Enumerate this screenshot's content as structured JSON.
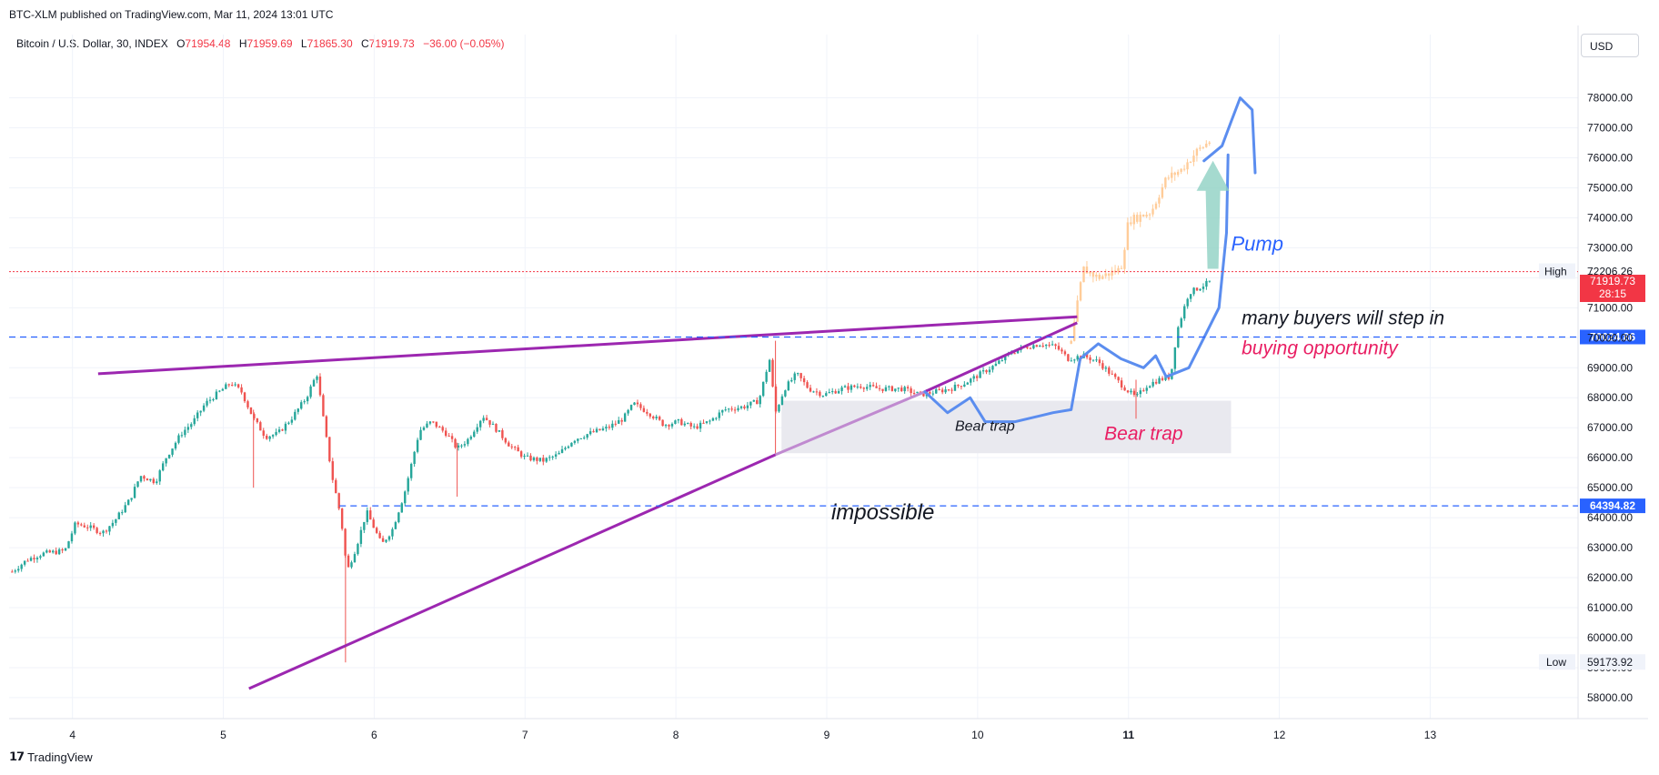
{
  "publish_line": "BTC-XLM published on TradingView.com, Mar 11, 2024 13:01 UTC",
  "legend": {
    "symbol": "Bitcoin / U.S. Dollar, 30, INDEX",
    "o_label": "O",
    "o_value": "71954.48",
    "h_label": "H",
    "h_value": "71959.69",
    "l_label": "L",
    "l_value": "71865.30",
    "c_label": "C",
    "c_value": "71919.73",
    "change": "−36.00 (−0.05%)"
  },
  "currency": "USD",
  "footer_brand": "TradingView",
  "chart_data": {
    "type": "candlestick",
    "title": "Bitcoin / U.S. Dollar, 30, INDEX",
    "x_ticks": [
      "4",
      "5",
      "6",
      "7",
      "8",
      "9",
      "10",
      "11",
      "12",
      "13"
    ],
    "y_ticks": [
      "78000.00",
      "77000.00",
      "76000.00",
      "75000.00",
      "74000.00",
      "73000.00",
      "72000.00",
      "71000.00",
      "70000.00",
      "69000.00",
      "68000.00",
      "67000.00",
      "66000.00",
      "65000.00",
      "64000.00",
      "63000.00",
      "62000.00",
      "61000.00",
      "60000.00",
      "59000.00",
      "58000.00"
    ],
    "ylim": [
      57300,
      79200
    ],
    "xlim": [
      3.58,
      13.98
    ],
    "price_path": [
      [
        3.6,
        62200
      ],
      [
        3.7,
        62600
      ],
      [
        3.8,
        62800
      ],
      [
        3.95,
        62900
      ],
      [
        4.02,
        63800
      ],
      [
        4.1,
        63700
      ],
      [
        4.2,
        63500
      ],
      [
        4.28,
        63900
      ],
      [
        4.38,
        64600
      ],
      [
        4.45,
        65400
      ],
      [
        4.55,
        65200
      ],
      [
        4.62,
        66000
      ],
      [
        4.72,
        66800
      ],
      [
        4.8,
        67200
      ],
      [
        4.88,
        67800
      ],
      [
        4.95,
        68100
      ],
      [
        5.05,
        68500
      ],
      [
        5.12,
        68200
      ],
      [
        5.2,
        67300
      ],
      [
        5.28,
        66700
      ],
      [
        5.36,
        66800
      ],
      [
        5.45,
        67300
      ],
      [
        5.55,
        68000
      ],
      [
        5.62,
        68800
      ],
      [
        5.66,
        67400
      ],
      [
        5.72,
        65400
      ],
      [
        5.78,
        64000
      ],
      [
        5.82,
        62200
      ],
      [
        5.88,
        63000
      ],
      [
        5.95,
        64200
      ],
      [
        6.05,
        63100
      ],
      [
        6.12,
        63600
      ],
      [
        6.2,
        64800
      ],
      [
        6.3,
        66900
      ],
      [
        6.38,
        67200
      ],
      [
        6.48,
        66800
      ],
      [
        6.55,
        66300
      ],
      [
        6.62,
        66600
      ],
      [
        6.72,
        67400
      ],
      [
        6.8,
        67000
      ],
      [
        6.9,
        66400
      ],
      [
        7.0,
        66000
      ],
      [
        7.12,
        65900
      ],
      [
        7.22,
        66100
      ],
      [
        7.32,
        66600
      ],
      [
        7.42,
        66800
      ],
      [
        7.55,
        67000
      ],
      [
        7.65,
        67300
      ],
      [
        7.72,
        67800
      ],
      [
        7.82,
        67500
      ],
      [
        7.92,
        67100
      ],
      [
        8.02,
        67200
      ],
      [
        8.12,
        67000
      ],
      [
        8.22,
        67200
      ],
      [
        8.32,
        67600
      ],
      [
        8.45,
        67700
      ],
      [
        8.55,
        67900
      ],
      [
        8.62,
        69300
      ],
      [
        8.66,
        67500
      ],
      [
        8.72,
        68300
      ],
      [
        8.8,
        68800
      ],
      [
        8.88,
        68300
      ],
      [
        8.98,
        68100
      ],
      [
        9.1,
        68300
      ],
      [
        9.22,
        68400
      ],
      [
        9.35,
        68300
      ],
      [
        9.5,
        68300
      ],
      [
        9.62,
        68100
      ],
      [
        9.72,
        68200
      ],
      [
        9.82,
        68300
      ],
      [
        9.92,
        68500
      ],
      [
        10.02,
        68800
      ],
      [
        10.12,
        69100
      ],
      [
        10.22,
        69500
      ],
      [
        10.32,
        69700
      ],
      [
        10.42,
        69800
      ],
      [
        10.52,
        69700
      ],
      [
        10.6,
        69300
      ],
      [
        10.7,
        69400
      ],
      [
        10.8,
        69200
      ],
      [
        10.9,
        68700
      ],
      [
        10.98,
        68300
      ],
      [
        11.05,
        68000
      ],
      [
        11.12,
        68400
      ],
      [
        11.2,
        68600
      ],
      [
        11.28,
        68700
      ],
      [
        11.32,
        70200
      ],
      [
        11.4,
        71500
      ],
      [
        11.48,
        71700
      ],
      [
        11.55,
        71900
      ]
    ],
    "projection_path": [
      [
        10.62,
        69800
      ],
      [
        10.7,
        72300
      ],
      [
        10.8,
        72000
      ],
      [
        10.95,
        72300
      ],
      [
        11.0,
        73900
      ],
      [
        11.15,
        74200
      ],
      [
        11.25,
        75300
      ],
      [
        11.35,
        75600
      ],
      [
        11.45,
        76200
      ],
      [
        11.55,
        76600
      ]
    ],
    "horizontal_lines": [
      {
        "label": "70024.86",
        "value": 70024.86,
        "color": "#2962ff"
      },
      {
        "label": "64394.82",
        "value": 64394.82,
        "color": "#2962ff"
      }
    ],
    "price_labels": {
      "high_label": "High",
      "high_value": "72206.26",
      "current_value": "71919.73",
      "countdown": "28:15",
      "low_label": "Low",
      "low_value": "59173.92"
    },
    "annotations": {
      "pump": "Pump",
      "many_buyers": "many buyers will step in",
      "buying_opportunity": "buying opportunity",
      "bear_trap_small": "Bear trap",
      "bear_trap_large": "Bear trap",
      "impossible": "impossible"
    },
    "colors": {
      "up": "#26a69a",
      "down": "#ef5350",
      "wedge": "#9c27b0",
      "hline": "#2962ff",
      "projection": "#ffcc99",
      "drawing": "#5b8def",
      "zone": "#e9e9ef",
      "arrow": "#8fd1c3",
      "pink_text": "#e91e63"
    }
  }
}
